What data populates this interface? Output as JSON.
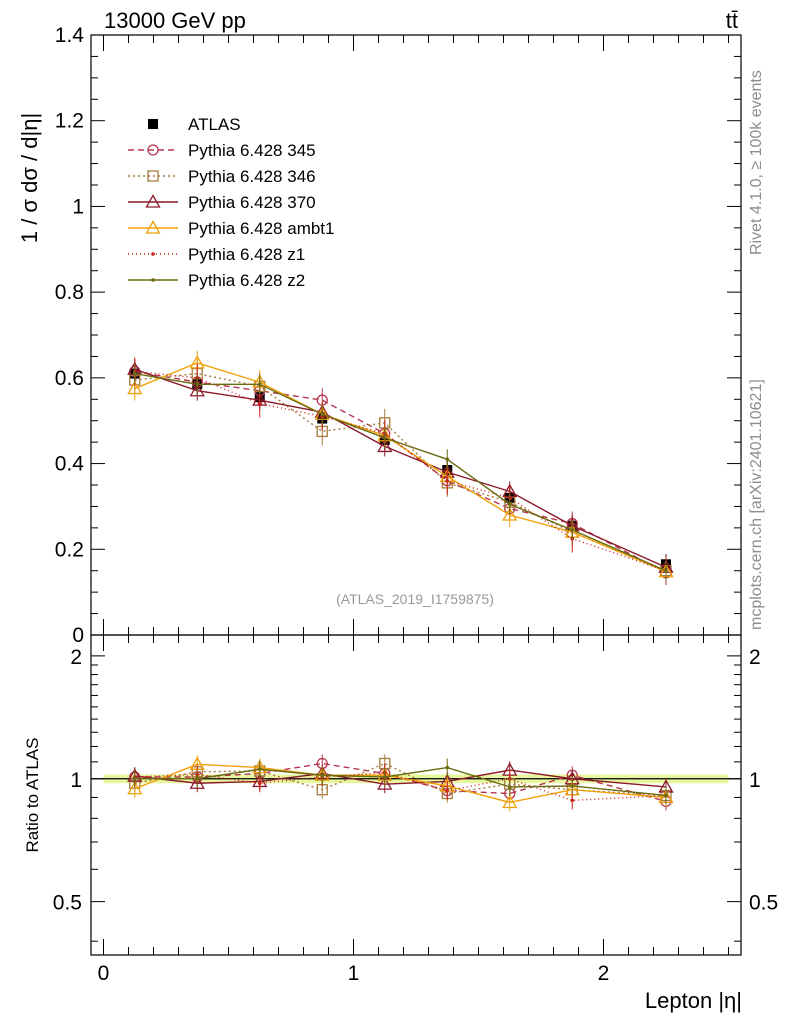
{
  "header": {
    "left": "13000 GeV pp",
    "right": "tt̄"
  },
  "side_texts": {
    "rivet": "Rivet 4.1.0, ≥ 100k events",
    "mcplots": "mcplots.cern.ch [arXiv:2401.10621]"
  },
  "analysis_tag": "(ATLAS_2019_I1759875)",
  "main_ylabel": "1 / σ  dσ / d|η|",
  "ratio_ylabel": "Ratio to ATLAS",
  "xlabel": "Lepton |η|",
  "chart_data": [
    {
      "type": "line",
      "panel": "main",
      "x": [
        0.125,
        0.375,
        0.625,
        0.875,
        1.125,
        1.375,
        1.625,
        1.875,
        2.25
      ],
      "xlim": [
        -0.05,
        2.55
      ],
      "ylim": [
        0,
        1.4
      ],
      "yticks": [
        0,
        0.2,
        0.4,
        0.6,
        0.8,
        1,
        1.2,
        1.4
      ],
      "ytick_labels": [
        "0",
        "0.2",
        "0.4",
        "0.6",
        "0.8",
        "1",
        "1.2",
        "1.4"
      ],
      "xticks": [
        0,
        1,
        2
      ],
      "xtick_labels": [
        "0",
        "1",
        "2"
      ],
      "series": [
        {
          "name": "ATLAS",
          "color": "#000000",
          "marker": "filled-square",
          "dash": "none",
          "values": [
            0.61,
            0.585,
            0.555,
            0.505,
            0.455,
            0.385,
            0.32,
            0.255,
            0.165
          ]
        },
        {
          "name": "Pythia 6.428 345",
          "color": "#b5364f",
          "marker": "open-circle",
          "dash": "6,4",
          "values": [
            0.615,
            0.59,
            0.57,
            0.548,
            0.47,
            0.36,
            0.295,
            0.26,
            0.145
          ]
        },
        {
          "name": "Pythia 6.428 346",
          "color": "#a67c3d",
          "marker": "open-square",
          "dash": "2,3",
          "values": [
            0.595,
            0.61,
            0.58,
            0.475,
            0.495,
            0.355,
            0.31,
            0.24,
            0.15
          ]
        },
        {
          "name": "Pythia 6.428 370",
          "color": "#8b1a2a",
          "marker": "open-triangle",
          "dash": "none",
          "values": [
            0.62,
            0.57,
            0.548,
            0.52,
            0.44,
            0.38,
            0.335,
            0.255,
            0.158
          ]
        },
        {
          "name": "Pythia 6.428 ambt1",
          "color": "#f0a10a",
          "marker": "open-triangle",
          "dash": "none",
          "values": [
            0.575,
            0.635,
            0.59,
            0.515,
            0.465,
            0.37,
            0.28,
            0.24,
            0.148
          ]
        },
        {
          "name": "Pythia 6.428 z1",
          "color": "#c9201c",
          "marker": "small-dot",
          "dash": "1,3",
          "values": [
            0.615,
            0.6,
            0.54,
            0.51,
            0.47,
            0.36,
            0.32,
            0.225,
            0.15
          ]
        },
        {
          "name": "Pythia 6.428 z2",
          "color": "#6b6b10",
          "marker": "small-dot",
          "dash": "none",
          "values": [
            0.61,
            0.585,
            0.585,
            0.515,
            0.46,
            0.41,
            0.305,
            0.245,
            0.15
          ]
        }
      ]
    },
    {
      "type": "line",
      "panel": "ratio",
      "title": "Ratio to ATLAS",
      "x": [
        0.125,
        0.375,
        0.625,
        0.875,
        1.125,
        1.375,
        1.625,
        1.875,
        2.25
      ],
      "xlim": [
        -0.05,
        2.55
      ],
      "ylim": [
        0.37,
        2.25
      ],
      "yticks": [
        0.5,
        1,
        2
      ],
      "ytick_labels": [
        "0.5",
        "1",
        "2"
      ],
      "reference_band": [
        0.975,
        1.025
      ],
      "series": [
        {
          "name": "Pythia 6.428 345",
          "values": [
            1.01,
            1.01,
            1.03,
            1.09,
            1.03,
            0.935,
            0.92,
            1.02,
            0.88
          ]
        },
        {
          "name": "Pythia 6.428 346",
          "values": [
            0.975,
            1.04,
            1.045,
            0.94,
            1.09,
            0.92,
            0.97,
            0.94,
            0.91
          ]
        },
        {
          "name": "Pythia 6.428 370",
          "values": [
            1.015,
            0.975,
            0.985,
            1.03,
            0.97,
            0.985,
            1.05,
            1.0,
            0.955
          ]
        },
        {
          "name": "Pythia 6.428 ambt1",
          "values": [
            0.945,
            1.085,
            1.065,
            1.02,
            1.02,
            0.96,
            0.875,
            0.94,
            0.9
          ]
        },
        {
          "name": "Pythia 6.428 z1",
          "values": [
            1.01,
            1.025,
            0.975,
            1.01,
            1.035,
            0.935,
            1.0,
            0.885,
            0.91
          ]
        },
        {
          "name": "Pythia 6.428 z2",
          "values": [
            1.0,
            1.0,
            1.055,
            1.02,
            1.01,
            1.065,
            0.955,
            0.96,
            0.91
          ]
        }
      ]
    }
  ]
}
